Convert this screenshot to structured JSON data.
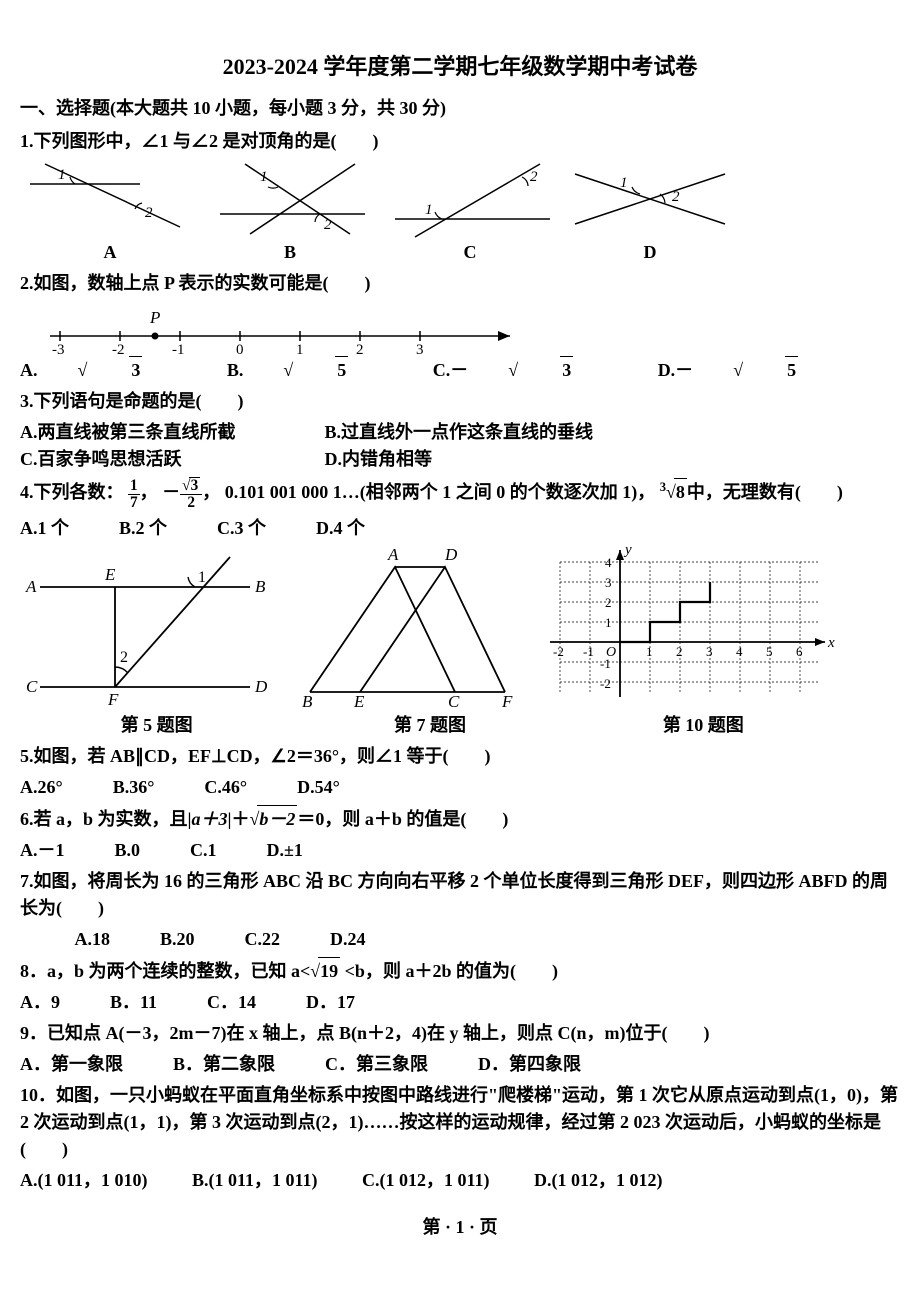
{
  "page": {
    "footer": "第 · 1 · 页"
  },
  "title": "2023-2024 学年度第二学期七年级数学期中考试卷",
  "section1": "一、选择题(本大题共 10 小题，每小题 3 分，共 30 分)",
  "q1": {
    "text": "1.下列图形中，∠1 与∠2 是对顶角的是(　　)",
    "labels": {
      "a": "A",
      "b": "B",
      "c": "C",
      "d": "D"
    },
    "svg": {
      "w": 170,
      "h": 80,
      "stroke": "#000",
      "sw": 1.5,
      "font": 16,
      "fontI": "italic"
    }
  },
  "q2": {
    "text": "2.如图，数轴上点 P 表示的实数可能是(　　)",
    "ticks": [
      "-3",
      "-2",
      "-1",
      "0",
      "1",
      "2",
      "3"
    ],
    "p_label": "P",
    "p_x": 135,
    "opts": {
      "a": {
        "pre": "A.",
        "rad": "3"
      },
      "b": {
        "pre": "B.",
        "rad": "5"
      },
      "c": {
        "pre": "C.－",
        "rad": "3"
      },
      "d": {
        "pre": "D.－",
        "rad": "5"
      }
    },
    "axis": {
      "x0": 40,
      "x1": 480,
      "y": 35,
      "step": 60,
      "start": 40
    }
  },
  "q3": {
    "text": "3.下列语句是命题的是(　　)",
    "a": "A.两直线被第三条直线所截",
    "b": "B.过直线外一点作这条直线的垂线",
    "c": "C.百家争鸣思想活跃",
    "d": "D.内错角相等"
  },
  "q4": {
    "prefix": "4.下列各数：",
    "item1_n": "1",
    "item1_d": "7",
    "comma1": "，",
    "item2_neg": "－",
    "item2_n": "3",
    "item2_d": "2",
    "comma2": "，",
    "item3": "0.101 001 000 1",
    "dots": "…",
    "mid": "(相邻两个 1 之间 0 的个数逐次加 1)，",
    "cuberoot_pre": "3",
    "cuberoot_rad": "8",
    "tail": "中，无理数有(　　)",
    "opts": {
      "a": "A.1 个",
      "b": "B.2 个",
      "c": "C.3 个",
      "d": "D.4 个"
    }
  },
  "figs": {
    "c5": "第 5 题图",
    "c7": "第 7 题图",
    "c10": "第 10 题图",
    "f5": {
      "labels": {
        "A": "A",
        "B": "B",
        "C": "C",
        "D": "D",
        "E": "E",
        "F": "F",
        "ang1": "1",
        "ang2": "2"
      }
    },
    "f7": {
      "labels": {
        "A": "A",
        "B": "B",
        "C": "C",
        "D": "D",
        "E": "E",
        "F": "F"
      }
    },
    "f10": {
      "ylabel": "y",
      "xlabel": "x",
      "O": "O",
      "yticks": [
        "1",
        "2",
        "3",
        "4"
      ],
      "xticks_neg": [
        "-2",
        "-1"
      ],
      "xticks_pos": [
        "1",
        "2",
        "3",
        "4",
        "5",
        "6"
      ],
      "neg_y": [
        "-1",
        "-2"
      ]
    }
  },
  "q5": {
    "text": "5.如图，若 AB∥CD，EF⊥CD，∠2＝36°，则∠1 等于(　　)",
    "opts": {
      "a": "A.26°",
      "b": "B.36°",
      "c": "C.46°",
      "d": "D.54°"
    }
  },
  "q6": {
    "pre": "6.若 a，b 为实数，且|",
    "mid": "＝0，则 a＋b 的值是(　　)",
    "abs": "a＋3",
    "plus": "|＋",
    "rad": "b－2",
    "opts": {
      "a": "A.－1",
      "b": "B.0",
      "c": "C.1",
      "d": "D.±1"
    }
  },
  "q7": {
    "text": "7.如图，将周长为 16 的三角形 ABC 沿 BC 方向向右平移 2 个单位长度得到三角形 DEF，则四边形 ABFD 的周长为(　　)",
    "opts": {
      "a": "A.18",
      "b": "B.20",
      "c": "C.22",
      "d": "D.24"
    }
  },
  "q8": {
    "pre": "8．a，b 为两个连续的整数，已知 a<",
    "rad": "19",
    "post": " <b，则 a＋2b 的值为(　　)",
    "opts": {
      "a": "A．9",
      "b": "B．11",
      "c": "C．14",
      "d": "D．17"
    }
  },
  "q9": {
    "text": "9．已知点 A(－3，2m－7)在 x 轴上，点 B(n＋2，4)在 y 轴上，则点 C(n，m)位于(　　)",
    "opts": {
      "a": "A．第一象限",
      "b": "B．第二象限",
      "c": "C．第三象限",
      "d": "D．第四象限"
    }
  },
  "q10": {
    "text": "10．如图，一只小蚂蚁在平面直角坐标系中按图中路线进行\"爬楼梯\"运动，第 1 次它从原点运动到点(1，0)，第 2 次运动到点(1，1)，第 3 次运动到点(2，1)……按这样的运动规律，经过第 2 023 次运动后，小蚂蚁的坐标是 (　　)",
    "opts": {
      "a": "A.(1 011，1 010)",
      "b": "B.(1 011，1 011)",
      "c": "C.(1 012，1 011)",
      "d": "D.(1 012，1 012)"
    }
  }
}
